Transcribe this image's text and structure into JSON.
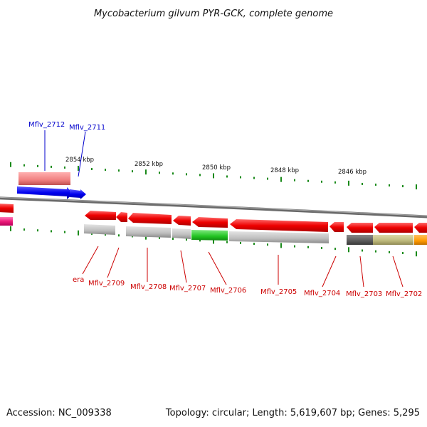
{
  "title": "Mycobacterium gilvum PYR-GCK, complete genome",
  "footer": {
    "accession": "Accession: NC_009338",
    "info": "Topology: circular; Length: 5,619,607 bp; Genes: 5,295"
  },
  "scale_labels": [
    "2854 kbp",
    "2852 kbp",
    "2850 kbp",
    "2848 kbp",
    "2846 kbp"
  ],
  "gene_labels": [
    {
      "text": "Mflv_2712",
      "color": "#0000cc"
    },
    {
      "text": "Mflv_2711",
      "color": "#0000cc"
    },
    {
      "text": "era",
      "color": "#cc0000"
    },
    {
      "text": "Mflv_2709",
      "color": "#cc0000"
    },
    {
      "text": "Mflv_2708",
      "color": "#cc0000"
    },
    {
      "text": "Mflv_2707",
      "color": "#cc0000"
    },
    {
      "text": "Mflv_2706",
      "color": "#cc0000"
    },
    {
      "text": "Mflv_2705",
      "color": "#cc0000"
    },
    {
      "text": "Mflv_2704",
      "color": "#cc0000"
    },
    {
      "text": "Mflv_2703",
      "color": "#cc0000"
    },
    {
      "text": "Mflv_2702",
      "color": "#cc0000"
    }
  ],
  "colors": {
    "forward_strand": "#0000ee",
    "reverse_strand": "#ee0000",
    "backbone": "#808080",
    "tick": "#1a8a1a"
  }
}
